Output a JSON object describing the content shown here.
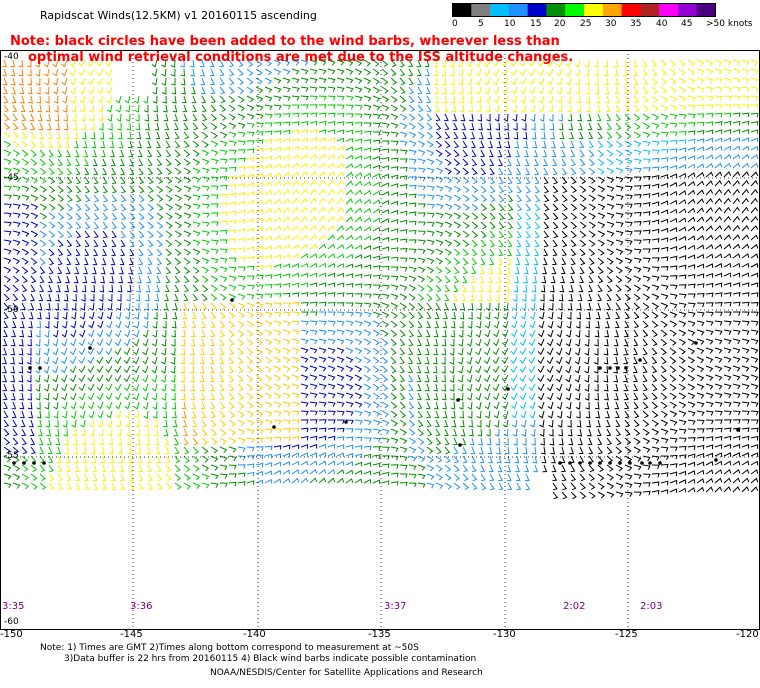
{
  "header": {
    "title": "Rapidscat Winds(12.5KM) v1 20160115 ascending",
    "note_line1": "Note: black circles have been added to the wind barbs, wherever less than",
    "note_line2": "optimal wind retrieval conditions are met due to the ISS altitude changes."
  },
  "legend": {
    "labels": [
      "0",
      "5",
      "10",
      "15",
      "20",
      "25",
      "30",
      "35",
      "40",
      "45",
      ">50 knots"
    ],
    "colors": [
      "#000000",
      "#7f7f7f",
      "#00bfff",
      "#1e90ff",
      "#0000cd",
      "#009000",
      "#00ff00",
      "#ffff00",
      "#ffa500",
      "#ff0000",
      "#b22222",
      "#ff00ff",
      "#9400d3",
      "#4b0082"
    ]
  },
  "axes": {
    "lon_ticks": [
      "-150",
      "-145",
      "-140",
      "-135",
      "-130",
      "-125",
      "-120"
    ],
    "lat_ticks": [
      "-40",
      "-45",
      "-50",
      "-55",
      "-60"
    ]
  },
  "time_tags": [
    "3:35",
    "3:36",
    "3:37",
    "2:02",
    "2:03"
  ],
  "footer": {
    "note1": "Note: 1) Times are GMT 2)Times along bottom correspond to measurement at ~50S",
    "note2": "3)Data buffer is 22 hrs from 20160115 4) Black wind barbs indicate possible contamination",
    "credit": "NOAA/NESDIS/Center for Satellite Applications and Research"
  }
}
